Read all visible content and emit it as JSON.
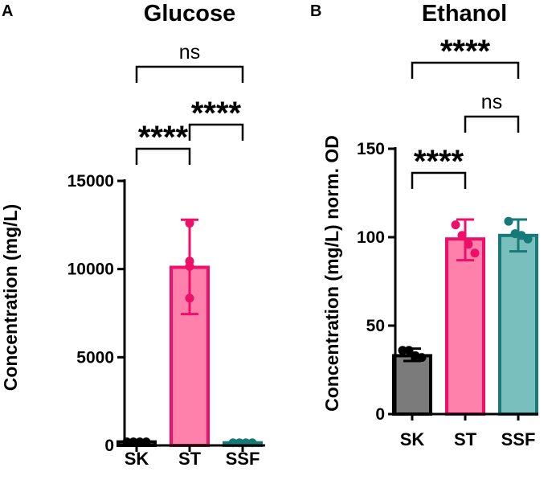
{
  "chart_data": [
    {
      "panel": "A",
      "type": "bar",
      "title": "Glucose",
      "ylabel": "Concentration (mg/L)",
      "xlabel": "",
      "categories": [
        "SK",
        "ST",
        "SSF"
      ],
      "values": [
        200,
        10100,
        150
      ],
      "error": [
        [
          120,
          260
        ],
        [
          7450,
          12800
        ],
        [
          110,
          180
        ]
      ],
      "points": [
        [
          200,
          200,
          200,
          200
        ],
        [
          12600,
          10450,
          10150,
          8350
        ],
        [
          150,
          150,
          150,
          150
        ]
      ],
      "ylim": [
        0,
        15000
      ],
      "yticks": [
        0,
        5000,
        10000,
        15000
      ],
      "yticklabels": [
        "0",
        "5000",
        "10000",
        "15000"
      ],
      "colors": {
        "fill": [
          "#7b7b7b",
          "#fd81ab",
          "#79bfbd"
        ],
        "edge": [
          "#000000",
          "#ee0f6a",
          "#157a78"
        ]
      },
      "comparisons": [
        {
          "from": "SK",
          "to": "ST",
          "label": "****"
        },
        {
          "from": "ST",
          "to": "SSF",
          "label": "****"
        },
        {
          "from": "SK",
          "to": "SSF",
          "label": "ns"
        }
      ]
    },
    {
      "panel": "B",
      "type": "bar",
      "title": "Ethanol",
      "ylabel": "Concentration (mg/L) norm. OD",
      "xlabel": "",
      "categories": [
        "SK",
        "ST",
        "SSF"
      ],
      "values": [
        33,
        99,
        101
      ],
      "error": [
        [
          30,
          37
        ],
        [
          87,
          110
        ],
        [
          92,
          110
        ]
      ],
      "points": [
        [
          36,
          36,
          33,
          32
        ],
        [
          107,
          101,
          96,
          91
        ],
        [
          109,
          102,
          101,
          99
        ]
      ],
      "ylim": [
        0,
        150
      ],
      "yticks": [
        0,
        50,
        100,
        150
      ],
      "yticklabels": [
        "0",
        "50",
        "100",
        "150"
      ],
      "colors": {
        "fill": [
          "#7b7b7b",
          "#fd81ab",
          "#79bfbd"
        ],
        "edge": [
          "#000000",
          "#ee0f6a",
          "#157a78"
        ]
      },
      "comparisons": [
        {
          "from": "SK",
          "to": "ST",
          "label": "****"
        },
        {
          "from": "ST",
          "to": "SSF",
          "label": "ns"
        },
        {
          "from": "SK",
          "to": "SSF",
          "label": "****"
        }
      ]
    }
  ]
}
